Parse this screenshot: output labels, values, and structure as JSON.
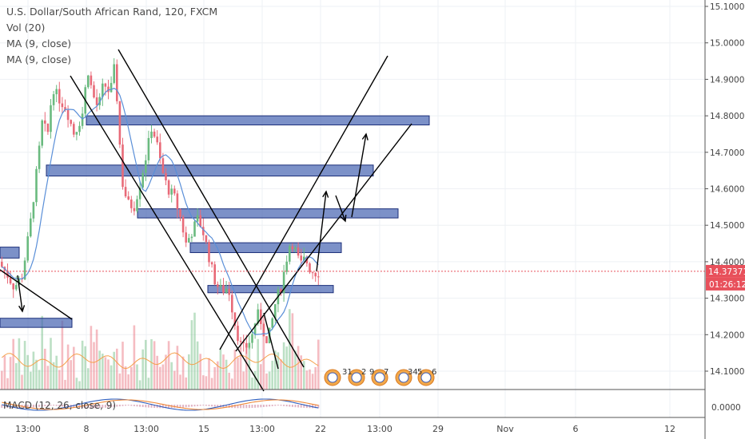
{
  "header": {
    "title": "U.S. Dollar/South African Rand, 120, FXCM",
    "indicators": [
      "Vol (20)",
      "MA (9, close)",
      "MA (9, close)"
    ]
  },
  "colors": {
    "up": "#6aba7f",
    "down": "#e86a78",
    "zone_fill": "#4a67b3",
    "zone_stroke": "#1c2f7a",
    "price_label": "#e8505b",
    "ma_line": "#5a8fd8",
    "vol_ma": "#f5a04a",
    "macd": "#2d5dbd",
    "signal": "#f08a3a",
    "trend_line": "#000000"
  },
  "chart_data": {
    "type": "candlestick",
    "symbol": "U.S. Dollar/South African Rand",
    "interval": "120",
    "source": "FXCM",
    "y_axis": {
      "range": [
        14.02,
        15.11
      ],
      "ticks": [
        "15.10000",
        "15.00000",
        "14.90000",
        "14.80000",
        "14.70000",
        "14.60000",
        "14.50000",
        "14.40000",
        "14.30000",
        "14.20000",
        "14.10000"
      ]
    },
    "macd_axis": {
      "ticks": [
        "0.0000"
      ]
    },
    "macd_label": "MACD (12, 26, close, 9)",
    "x_axis": {
      "ticks": [
        "13:00",
        "8",
        "13:00",
        "15",
        "13:00",
        "22",
        "13:00",
        "29",
        "Nov",
        "6",
        "12"
      ]
    },
    "current_price": "14.37371",
    "countdown": "01:26:12",
    "price_path": [
      [
        0,
        14.4
      ],
      [
        10,
        14.37
      ],
      [
        20,
        14.33
      ],
      [
        30,
        14.36
      ],
      [
        40,
        14.5
      ],
      [
        50,
        14.68
      ],
      [
        55,
        14.78
      ],
      [
        62,
        14.75
      ],
      [
        68,
        14.88
      ],
      [
        75,
        14.85
      ],
      [
        85,
        14.82
      ],
      [
        95,
        14.75
      ],
      [
        105,
        14.8
      ],
      [
        112,
        14.93
      ],
      [
        118,
        14.86
      ],
      [
        125,
        14.82
      ],
      [
        132,
        14.89
      ],
      [
        140,
        14.86
      ],
      [
        146,
        14.94
      ],
      [
        150,
        14.8
      ],
      [
        155,
        14.62
      ],
      [
        162,
        14.56
      ],
      [
        170,
        14.55
      ],
      [
        178,
        14.62
      ],
      [
        186,
        14.7
      ],
      [
        192,
        14.77
      ],
      [
        198,
        14.73
      ],
      [
        205,
        14.65
      ],
      [
        212,
        14.6
      ],
      [
        220,
        14.58
      ],
      [
        228,
        14.52
      ],
      [
        235,
        14.45
      ],
      [
        242,
        14.48
      ],
      [
        250,
        14.52
      ],
      [
        258,
        14.47
      ],
      [
        265,
        14.4
      ],
      [
        272,
        14.34
      ],
      [
        280,
        14.32
      ],
      [
        288,
        14.33
      ],
      [
        292,
        14.28
      ],
      [
        298,
        14.21
      ],
      [
        305,
        14.16
      ],
      [
        312,
        14.17
      ],
      [
        318,
        14.2
      ],
      [
        324,
        14.26
      ],
      [
        330,
        14.23
      ],
      [
        336,
        14.17
      ],
      [
        342,
        14.23
      ],
      [
        348,
        14.3
      ],
      [
        354,
        14.33
      ],
      [
        360,
        14.4
      ],
      [
        366,
        14.46
      ],
      [
        372,
        14.43
      ],
      [
        378,
        14.39
      ],
      [
        384,
        14.41
      ],
      [
        390,
        14.38
      ],
      [
        396,
        14.37
      ]
    ],
    "zones": [
      {
        "y1": 14.44,
        "y2": 14.41,
        "x1": 0,
        "x2": 24
      },
      {
        "y1": 14.8,
        "y2": 14.775,
        "x1": 108,
        "x2": 537
      },
      {
        "y1": 14.665,
        "y2": 14.635,
        "x1": 58,
        "x2": 467
      },
      {
        "y1": 14.545,
        "y2": 14.52,
        "x1": 172,
        "x2": 498
      },
      {
        "y1": 14.452,
        "y2": 14.425,
        "x1": 238,
        "x2": 427
      },
      {
        "y1": 14.335,
        "y2": 14.315,
        "x1": 260,
        "x2": 417
      },
      {
        "y1": 14.245,
        "y2": 14.22,
        "x1": 0,
        "x2": 90
      }
    ],
    "event_badges": [
      "31",
      "2",
      "9",
      "7",
      "34",
      "5",
      "6"
    ],
    "grid": true
  }
}
